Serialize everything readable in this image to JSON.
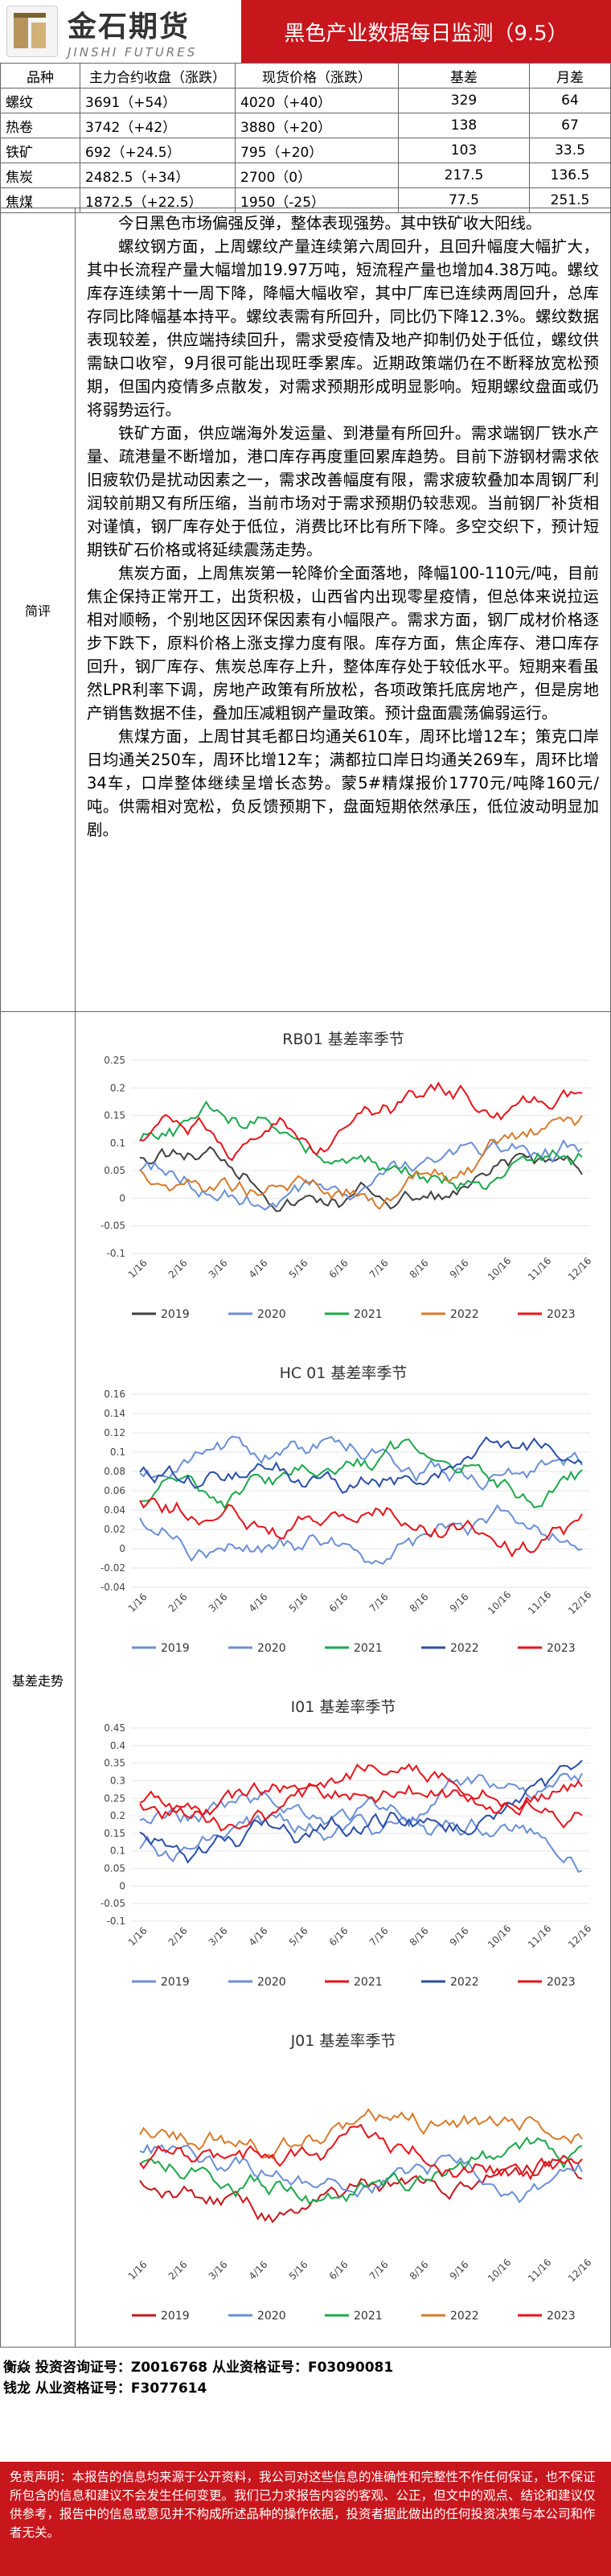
{
  "header": {
    "logo_cn": "金石期货",
    "logo_en": "JINSHI FUTURES",
    "title": "黑色产业数据每日监测（9.5）"
  },
  "quotes": {
    "columns": [
      "品种",
      "主力合约收盘（涨跌）",
      "现货价格（涨跌）",
      "基差",
      "月差"
    ],
    "rows": [
      {
        "name": "螺纹",
        "close": "3691（+54）",
        "spot": "4020（+40）",
        "basis": "329",
        "spread": "64"
      },
      {
        "name": "热卷",
        "close": "3742（+42）",
        "spot": "3880（+20）",
        "basis": "138",
        "spread": "67"
      },
      {
        "name": "铁矿",
        "close": "692（+24.5）",
        "spot": "795（+20）",
        "basis": "103",
        "spread": "33.5"
      },
      {
        "name": "焦炭",
        "close": "2482.5（+34）",
        "spot": "2700（0）",
        "basis": "217.5",
        "spread": "136.5"
      },
      {
        "name": "焦煤",
        "close": "1872.5（+22.5）",
        "spot": "1950（-25）",
        "basis": "77.5",
        "spread": "251.5"
      }
    ]
  },
  "summary": {
    "label": "简评",
    "paragraphs": [
      "今日黑色市场偏强反弹，整体表现强势。其中铁矿收大阳线。",
      "螺纹钢方面，上周螺纹产量连续第六周回升，且回升幅度大幅扩大，其中长流程产量大幅增加19.97万吨，短流程产量也增加4.38万吨。螺纹库存连续第十一周下降，降幅大幅收窄，其中厂库已连续两周回升，总库存同比降幅基本持平。螺纹表需有所回升，同比仍下降12.3%。螺纹数据表现较差，供应端持续回升，需求受疫情及地产抑制仍处于低位，螺纹供需缺口收窄，9月很可能出现旺季累库。近期政策端仍在不断释放宽松预期，但国内疫情多点散发，对需求预期形成明显影响。短期螺纹盘面或仍将弱势运行。",
      "铁矿方面，供应端海外发运量、到港量有所回升。需求端钢厂铁水产量、疏港量不断增加，港口库存再度重回累库趋势。目前下游钢材需求依旧疲软仍是扰动因素之一，需求改善幅度有限，需求疲软叠加本周钢厂利润较前期又有所压缩，当前市场对于需求预期仍较悲观。当前钢厂补货相对谨慎，钢厂库存处于低位，消费比环比有所下降。多空交织下，预计短期铁矿石价格或将延续震荡走势。",
      "焦炭方面，上周焦炭第一轮降价全面落地，降幅100-110元/吨，目前焦企保持正常开工，出货积极，山西省内出现零星疫情，但总体来说拉运相对顺畅，个别地区因环保因素有小幅限产。需求方面，钢厂成材价格逐步下跌下，原料价格上涨支撑力度有限。库存方面，焦企库存、港口库存回升，钢厂库存、焦炭总库存上升，整体库存处于较低水平。短期来看虽然LPR利率下调，房地产政策有所放松，各项政策托底房地产，但是房地产销售数据不佳，叠加压减粗钢产量政策。预计盘面震荡偏弱运行。",
      "焦煤方面，上周甘其毛都日均通关610车，周环比增12车；策克口岸日均通关250车，周环比增12车；满都拉口岸日均通关269车，周环比增34车，口岸整体继续呈增长态势。蒙5#精煤报价1770元/吨降160元/吨。供需相对宽松，负反馈预期下，盘面短期依然承压，低位波动明显加剧。"
    ]
  },
  "basis_section": {
    "label": "基差走势",
    "x_ticks": [
      "1/16",
      "2/16",
      "3/16",
      "4/16",
      "5/16",
      "6/16",
      "7/16",
      "8/16",
      "9/16",
      "10/16",
      "11/16",
      "12/16"
    ],
    "series_colors": {
      "2019": "#404040",
      "2020": "#6a8fd6",
      "2021": "#1aa84a",
      "2022": "#d87a2a",
      "2023": "#e8121a"
    },
    "charts": [
      {
        "title": "RB01 基差率季节",
        "yticks": [
          "0.25",
          "0.2",
          "0.15",
          "0.1",
          "0.05",
          "0",
          "-0.05",
          "-0.1"
        ],
        "legend_years": [
          "2019",
          "2020",
          "2021",
          "2022",
          "2023"
        ],
        "legend_colors": [
          "#404040",
          "#6a8fd6",
          "#1aa84a",
          "#d87a2a",
          "#e8121a"
        ]
      },
      {
        "title": "HC 01 基差率季节",
        "yticks": [
          "0.16",
          "0.14",
          "0.12",
          "0.1",
          "0.08",
          "0.06",
          "0.04",
          "0.02",
          "0",
          "-0.02",
          "-0.04"
        ],
        "legend_years": [
          "2019",
          "2020",
          "2021",
          "2022",
          "2023"
        ],
        "legend_colors": [
          "#6a8fd6",
          "#6a8fd6",
          "#1aa84a",
          "#2a4ea8",
          "#e8121a"
        ]
      },
      {
        "title": "I01 基差率季节",
        "yticks": [
          "0.45",
          "0.4",
          "0.35",
          "0.3",
          "0.25",
          "0.2",
          "0.15",
          "0.1",
          "0.05",
          "0",
          "-0.05",
          "-0.1"
        ],
        "legend_years": [
          "2019",
          "2020",
          "2021",
          "2022",
          "2023"
        ],
        "legend_colors": [
          "#6a8fd6",
          "#6a8fd6",
          "#e8121a",
          "#2a4ea8",
          "#e8121a"
        ]
      },
      {
        "title": "J01 基差率季节",
        "yticks": [],
        "legend_years": [
          "2019",
          "2020",
          "2021",
          "2022",
          "2023"
        ],
        "legend_colors": [
          "#c8161d",
          "#6a8fd6",
          "#1aa84a",
          "#d87a2a",
          "#e8121a"
        ]
      }
    ]
  },
  "footer": {
    "line1": "衡焱 投资咨询证号：Z0016768 从业资格证号：F03090081",
    "line2": "钱龙 从业资格证号：F3077614"
  },
  "disclaimer": "免责声明：本报告的信息均来源于公开资料，我公司对这些信息的准确性和完整性不作任何保证，也不保证所包含的信息和建议不会发生任何变更。我们已力求报告内容的客观、公正，但文中的观点、结论和建议仅供参考，报告中的信息或意见并不构成所述品种的操作依据，投资者据此做出的任何投资决策与本公司和作者无关。"
}
